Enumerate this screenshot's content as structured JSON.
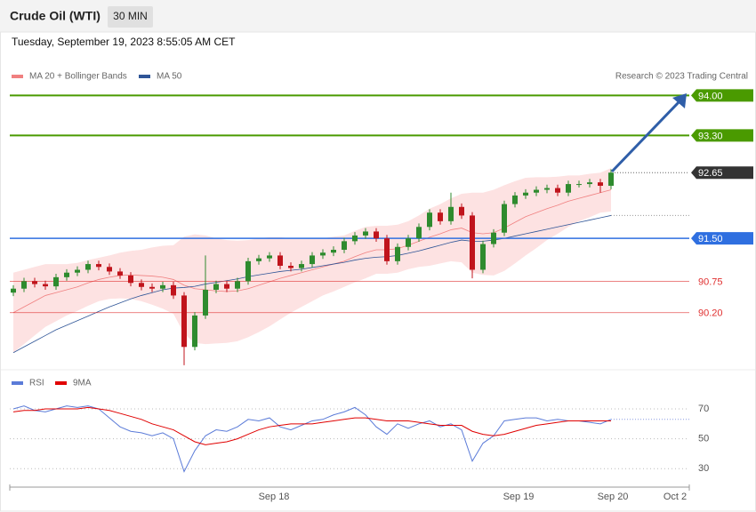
{
  "header": {
    "title": "Crude Oil (WTI)",
    "timeframe": "30 MIN",
    "datetime": "Tuesday, September 19, 2023 8:55:05 AM CET"
  },
  "chart_data": [
    {
      "type": "candlestick",
      "legend": [
        {
          "name": "MA 20 + Bollinger Bands",
          "color": "#f08080"
        },
        {
          "name": "MA 50",
          "color": "#2f5597"
        }
      ],
      "credit": "Research © 2023 Trading Central",
      "ylim": [
        89.2,
        94.1
      ],
      "up_color": "#2e8b2e",
      "down_color": "#c0141c",
      "band_color": "#fde2e2",
      "ohlc": [
        [
          90.55,
          90.68,
          90.49,
          90.62
        ],
        [
          90.62,
          90.81,
          90.56,
          90.75
        ],
        [
          90.75,
          90.81,
          90.64,
          90.7
        ],
        [
          90.7,
          90.76,
          90.6,
          90.66
        ],
        [
          90.66,
          90.88,
          90.6,
          90.82
        ],
        [
          90.82,
          90.96,
          90.76,
          90.9
        ],
        [
          90.9,
          91.01,
          90.84,
          90.95
        ],
        [
          90.95,
          91.11,
          90.89,
          91.05
        ],
        [
          91.05,
          91.11,
          90.94,
          91.0
        ],
        [
          91.0,
          91.06,
          90.86,
          90.92
        ],
        [
          90.92,
          90.98,
          90.79,
          90.85
        ],
        [
          90.85,
          90.91,
          90.66,
          90.72
        ],
        [
          90.72,
          90.78,
          90.59,
          90.65
        ],
        [
          90.65,
          90.71,
          90.56,
          90.62
        ],
        [
          90.62,
          90.74,
          90.56,
          90.68
        ],
        [
          90.68,
          90.74,
          90.44,
          90.5
        ],
        [
          90.5,
          90.56,
          89.28,
          89.6
        ],
        [
          89.6,
          90.21,
          89.54,
          90.15
        ],
        [
          90.15,
          91.2,
          90.09,
          90.6
        ],
        [
          90.6,
          90.76,
          90.54,
          90.7
        ],
        [
          90.7,
          90.76,
          90.56,
          90.62
        ],
        [
          90.62,
          90.81,
          90.56,
          90.75
        ],
        [
          90.75,
          91.16,
          90.69,
          91.1
        ],
        [
          91.1,
          91.21,
          91.04,
          91.15
        ],
        [
          91.15,
          91.26,
          91.09,
          91.2
        ],
        [
          91.2,
          91.26,
          90.96,
          91.02
        ],
        [
          91.02,
          91.08,
          90.92,
          90.98
        ],
        [
          90.98,
          91.11,
          90.92,
          91.05
        ],
        [
          91.05,
          91.26,
          90.99,
          91.2
        ],
        [
          91.2,
          91.31,
          91.14,
          91.25
        ],
        [
          91.25,
          91.36,
          91.19,
          91.3
        ],
        [
          91.3,
          91.51,
          91.24,
          91.45
        ],
        [
          91.45,
          91.61,
          91.39,
          91.55
        ],
        [
          91.55,
          91.68,
          91.49,
          91.62
        ],
        [
          91.62,
          91.68,
          91.44,
          91.5
        ],
        [
          91.5,
          91.56,
          91.04,
          91.1
        ],
        [
          91.1,
          91.41,
          91.04,
          91.35
        ],
        [
          91.35,
          91.56,
          91.29,
          91.5
        ],
        [
          91.5,
          91.76,
          91.44,
          91.7
        ],
        [
          91.7,
          92.01,
          91.64,
          91.95
        ],
        [
          91.95,
          92.01,
          91.74,
          91.8
        ],
        [
          91.8,
          92.3,
          91.74,
          92.05
        ],
        [
          92.05,
          92.11,
          91.84,
          91.9
        ],
        [
          91.9,
          91.96,
          90.8,
          90.95
        ],
        [
          90.95,
          91.46,
          90.89,
          91.4
        ],
        [
          91.4,
          91.66,
          91.34,
          91.6
        ],
        [
          91.6,
          92.16,
          91.54,
          92.1
        ],
        [
          92.1,
          92.31,
          92.04,
          92.25
        ],
        [
          92.25,
          92.36,
          92.19,
          92.3
        ],
        [
          92.3,
          92.41,
          92.24,
          92.35
        ],
        [
          92.35,
          92.44,
          92.29,
          92.38
        ],
        [
          92.38,
          92.44,
          92.24,
          92.3
        ],
        [
          92.3,
          92.51,
          92.24,
          92.45
        ],
        [
          92.45,
          92.51,
          92.39,
          92.45
        ],
        [
          92.45,
          92.54,
          92.39,
          92.48
        ],
        [
          92.48,
          92.54,
          92.3,
          92.42
        ],
        [
          92.42,
          92.71,
          92.36,
          92.65
        ]
      ],
      "ma20": [
        90.2,
        90.3,
        90.4,
        90.5,
        90.55,
        90.6,
        90.65,
        90.72,
        90.78,
        90.82,
        90.85,
        90.86,
        90.85,
        90.84,
        90.82,
        90.78,
        90.68,
        90.62,
        90.6,
        90.58,
        90.57,
        90.58,
        90.62,
        90.68,
        90.74,
        90.8,
        90.85,
        90.9,
        90.95,
        91.0,
        91.05,
        91.1,
        91.18,
        91.25,
        91.3,
        91.3,
        91.32,
        91.38,
        91.45,
        91.52,
        91.58,
        91.65,
        91.68,
        91.6,
        91.58,
        91.6,
        91.68,
        91.78,
        91.88,
        91.95,
        92.02,
        92.08,
        92.15,
        92.2,
        92.25,
        92.3,
        92.35
      ],
      "bb_upper": [
        90.9,
        90.95,
        91.0,
        91.05,
        91.05,
        91.05,
        91.07,
        91.12,
        91.16,
        91.2,
        91.25,
        91.28,
        91.3,
        91.34,
        91.37,
        91.38,
        91.53,
        91.57,
        91.55,
        91.5,
        91.47,
        91.46,
        91.47,
        91.5,
        91.52,
        91.52,
        91.5,
        91.5,
        91.5,
        91.5,
        91.53,
        91.55,
        91.63,
        91.7,
        91.72,
        91.72,
        91.74,
        91.8,
        91.9,
        92.02,
        92.1,
        92.2,
        92.28,
        92.3,
        92.3,
        92.35,
        92.43,
        92.5,
        92.56,
        92.57,
        92.57,
        92.58,
        92.6,
        92.6,
        92.63,
        92.65,
        92.73
      ],
      "bb_lower": [
        89.5,
        89.65,
        89.8,
        89.95,
        90.05,
        90.15,
        90.23,
        90.32,
        90.4,
        90.44,
        90.45,
        90.44,
        90.4,
        90.34,
        90.27,
        90.18,
        89.83,
        89.67,
        89.65,
        89.66,
        89.67,
        89.7,
        89.77,
        89.86,
        89.96,
        90.08,
        90.2,
        90.3,
        90.4,
        90.5,
        90.57,
        90.65,
        90.73,
        90.8,
        90.88,
        90.88,
        90.9,
        90.96,
        91.0,
        91.02,
        91.06,
        91.1,
        91.08,
        90.9,
        90.86,
        90.85,
        90.93,
        91.06,
        91.2,
        91.33,
        91.47,
        91.58,
        91.7,
        91.8,
        91.87,
        91.95,
        91.97
      ],
      "ma50": [
        89.5,
        89.6,
        89.7,
        89.8,
        89.9,
        89.98,
        90.06,
        90.14,
        90.22,
        90.3,
        90.37,
        90.44,
        90.5,
        90.55,
        90.6,
        90.63,
        90.64,
        90.66,
        90.7,
        90.73,
        90.76,
        90.79,
        90.83,
        90.86,
        90.89,
        90.92,
        90.94,
        90.96,
        90.99,
        91.02,
        91.05,
        91.08,
        91.12,
        91.15,
        91.17,
        91.18,
        91.2,
        91.24,
        91.28,
        91.33,
        91.38,
        91.43,
        91.47,
        91.45,
        91.45,
        91.47,
        91.5,
        91.54,
        91.58,
        91.62,
        91.66,
        91.7,
        91.74,
        91.78,
        91.82,
        91.86,
        91.9
      ],
      "levels": [
        {
          "value": 94.0,
          "label": "94.00",
          "color": "#4a9a00",
          "style": "tag"
        },
        {
          "value": 93.3,
          "label": "93.30",
          "color": "#4a9a00",
          "style": "tag"
        },
        {
          "value": 92.65,
          "label": "92.65",
          "color": "#333333",
          "style": "tag-dotted"
        },
        {
          "value": 91.5,
          "label": "91.50",
          "color": "#2f6fe0",
          "style": "tag"
        },
        {
          "value": 90.75,
          "label": "90.75",
          "color": "#e03030",
          "style": "text"
        },
        {
          "value": 90.2,
          "label": "90.20",
          "color": "#e03030",
          "style": "text"
        }
      ]
    },
    {
      "type": "line",
      "ylim": [
        20,
        78
      ],
      "yticks": [
        70,
        50,
        30
      ],
      "grid": true,
      "series": [
        {
          "name": "RSI",
          "color": "#5b7bd8",
          "values": [
            70,
            72,
            69,
            68,
            70,
            72,
            71,
            72,
            70,
            64,
            58,
            55,
            54,
            52,
            54,
            50,
            28,
            42,
            52,
            56,
            55,
            58,
            63,
            62,
            64,
            58,
            56,
            59,
            62,
            63,
            66,
            68,
            71,
            66,
            58,
            53,
            60,
            57,
            60,
            62,
            58,
            60,
            56,
            35,
            47,
            52,
            62,
            63,
            64,
            64,
            62,
            63,
            62,
            62,
            61,
            60,
            63
          ]
        },
        {
          "name": "9MA",
          "color": "#e00000",
          "values": [
            68,
            69,
            69,
            70,
            70,
            70,
            70,
            71,
            70,
            69,
            67,
            65,
            63,
            60,
            58,
            56,
            52,
            48,
            46,
            47,
            48,
            50,
            53,
            56,
            58,
            59,
            60,
            60,
            60,
            61,
            62,
            63,
            64,
            64,
            63,
            62,
            62,
            62,
            61,
            60,
            59,
            59,
            59,
            55,
            53,
            52,
            53,
            55,
            57,
            59,
            60,
            61,
            62,
            62,
            62,
            62,
            62
          ]
        }
      ],
      "x_labels": [
        "Sep 18",
        "Sep 19",
        "Sep 20",
        "Oct 2"
      ]
    }
  ]
}
